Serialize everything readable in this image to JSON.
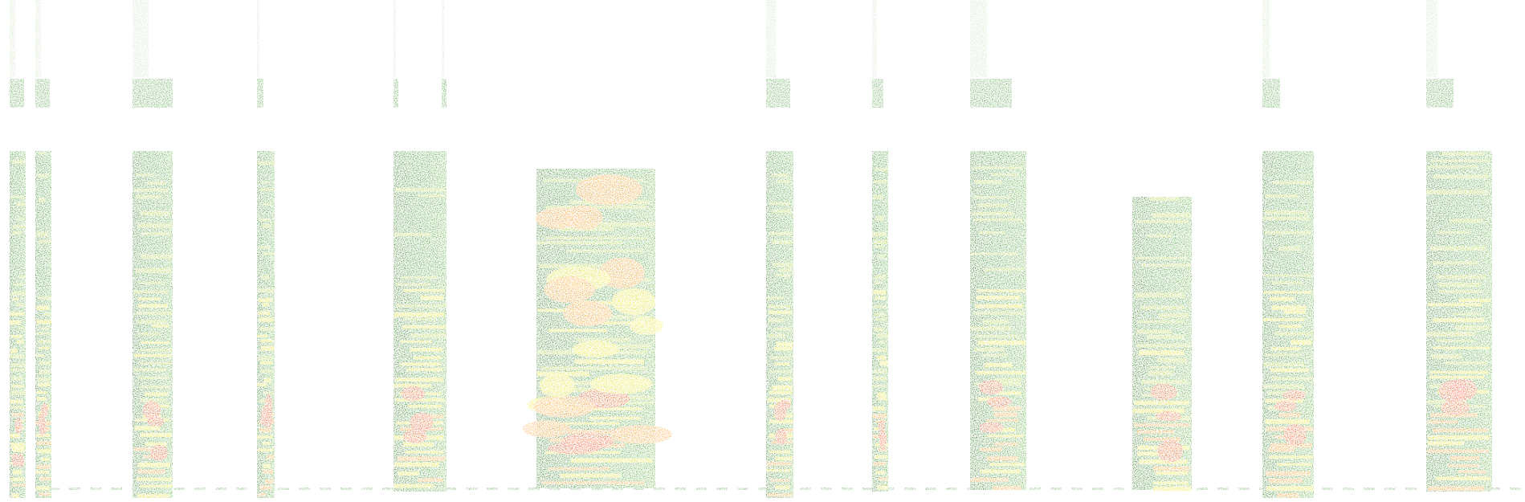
{
  "palette": {
    "background": "#ffffff",
    "green": "#2e8b1f",
    "green_dark": "#1f6d12",
    "lime": "#a7cc1a",
    "yellow": "#f2e600",
    "orange": "#ff8a00",
    "red": "#ff2a00"
  },
  "spectrogram": {
    "segments": [
      {
        "name": "segment-01"
      },
      {
        "name": "segment-02"
      },
      {
        "name": "segment-03"
      },
      {
        "name": "segment-04"
      },
      {
        "name": "segment-05"
      },
      {
        "name": "segment-06"
      },
      {
        "name": "segment-07"
      },
      {
        "name": "segment-08"
      },
      {
        "name": "segment-09"
      },
      {
        "name": "segment-10"
      },
      {
        "name": "segment-11"
      },
      {
        "name": "segment-12"
      },
      {
        "name": "segment-13"
      }
    ]
  }
}
